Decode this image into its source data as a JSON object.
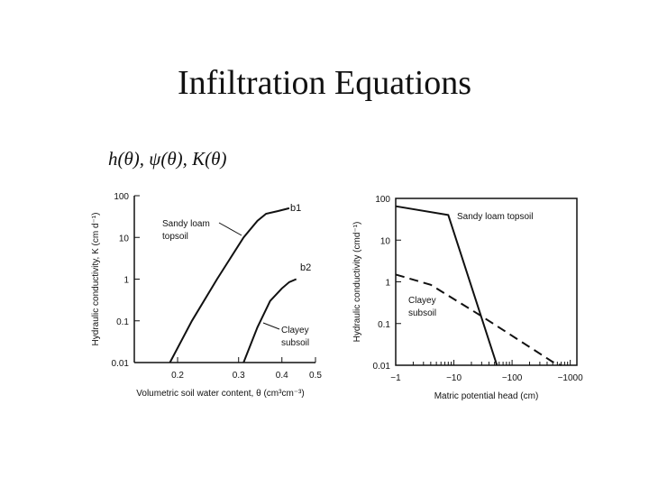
{
  "slide": {
    "title": "Infiltration Equations",
    "subtitle": "h(θ), ψ(θ), K(θ)"
  },
  "chart_data": [
    {
      "type": "line",
      "xscale": "log",
      "yscale": "log",
      "xlabel": "Volumetric soil water content,  θ  (cm³cm⁻³)",
      "ylabel": "Hydraulic conductivity, K (cm d⁻¹)",
      "xlim": [
        0.15,
        0.5
      ],
      "ylim": [
        0.01,
        100
      ],
      "xticks": [
        0.2,
        0.3,
        0.4,
        0.5
      ],
      "xtick_labels": [
        "0.2",
        "0.3",
        "0.4",
        "0.5"
      ],
      "yticks": [
        0.01,
        0.1,
        1,
        10,
        100
      ],
      "ytick_labels": [
        "0.01",
        "0.1",
        "1",
        "10",
        "100"
      ],
      "series": [
        {
          "name": "Sandy loam topsoil",
          "label": "b1",
          "annotation": [
            "Sandy loam",
            "topsoil"
          ],
          "style": "solid",
          "x": [
            0.19,
            0.22,
            0.26,
            0.31,
            0.34,
            0.36,
            0.39,
            0.42
          ],
          "y": [
            0.01,
            0.1,
            1,
            10,
            25,
            37,
            43,
            50
          ]
        },
        {
          "name": "Clayey subsoil",
          "label": "b2",
          "annotation": [
            "Clayey",
            "subsoil"
          ],
          "style": "solid",
          "x": [
            0.31,
            0.34,
            0.37,
            0.4,
            0.42,
            0.44
          ],
          "y": [
            0.01,
            0.07,
            0.3,
            0.6,
            0.85,
            1
          ]
        }
      ]
    },
    {
      "type": "line",
      "xscale": "log",
      "yscale": "log",
      "xlabel": "Matric potential head (cm)",
      "ylabel": "Hydraulic conductivity (cmd⁻¹)",
      "xlim": [
        -1,
        -1300
      ],
      "ylim": [
        0.01,
        100
      ],
      "xticks": [
        -1,
        -10,
        -100,
        -1000
      ],
      "xtick_labels": [
        "−1",
        "−10",
        "−100",
        "−1000"
      ],
      "yticks": [
        0.01,
        0.1,
        1,
        10,
        100
      ],
      "ytick_labels": [
        "0.01",
        "0.1",
        "1",
        "10",
        "100"
      ],
      "series": [
        {
          "name": "Sandy loam topsoil",
          "annotation": [
            "Sandy loam topsoil"
          ],
          "style": "solid",
          "x": [
            -1,
            -8,
            -55
          ],
          "y": [
            65,
            40,
            0.01
          ]
        },
        {
          "name": "Clayey subsoil",
          "annotation": [
            "Clayey",
            "subsoil"
          ],
          "style": "dashed",
          "x": [
            -1,
            -4,
            -30,
            -500,
            -700
          ],
          "y": [
            1.5,
            0.85,
            0.15,
            0.012,
            0.01
          ]
        }
      ]
    }
  ]
}
